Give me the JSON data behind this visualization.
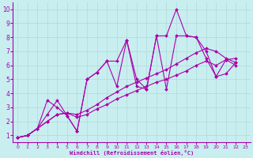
{
  "bg_color": "#c8eef0",
  "line_color": "#aa00aa",
  "grid_color": "#b0d8da",
  "xlabel": "Windchill (Refroidissement éolien,°C)",
  "xlabel_color": "#aa00aa",
  "tick_color": "#aa00aa",
  "xlim": [
    -0.5,
    23.5
  ],
  "ylim": [
    0.5,
    10.5
  ],
  "xticks": [
    0,
    1,
    2,
    3,
    4,
    5,
    6,
    7,
    8,
    9,
    10,
    11,
    12,
    13,
    14,
    15,
    16,
    17,
    18,
    19,
    20,
    21,
    22,
    23
  ],
  "yticks": [
    1,
    2,
    3,
    4,
    5,
    6,
    7,
    8,
    9,
    10
  ],
  "line1_x": [
    0,
    1,
    2,
    3,
    4,
    5,
    6,
    7,
    8,
    9,
    10,
    11,
    12,
    13,
    14,
    15,
    16,
    17,
    18,
    19,
    20,
    21,
    22
  ],
  "line1_y": [
    0.85,
    1.0,
    1.5,
    3.5,
    3.0,
    2.4,
    1.3,
    5.0,
    5.5,
    6.3,
    6.3,
    7.8,
    4.5,
    4.3,
    8.1,
    8.1,
    10.0,
    8.1,
    8.0,
    7.0,
    5.2,
    6.4,
    6.0
  ],
  "line2_x": [
    0,
    1,
    2,
    3,
    4,
    5,
    6,
    7,
    8,
    9,
    10,
    11,
    12,
    13,
    14,
    15,
    16,
    17,
    18,
    19,
    20,
    21,
    22
  ],
  "line2_y": [
    0.85,
    1.0,
    1.5,
    2.5,
    3.5,
    2.4,
    1.3,
    5.0,
    5.5,
    6.3,
    4.5,
    7.8,
    5.0,
    4.3,
    8.1,
    4.3,
    8.1,
    8.1,
    8.0,
    6.5,
    5.2,
    5.4,
    6.2
  ],
  "line3_x": [
    0,
    1,
    2,
    3,
    4,
    5,
    6,
    7,
    8,
    9,
    10,
    11,
    12,
    13,
    14,
    15,
    16,
    17,
    18,
    19,
    20,
    21,
    22
  ],
  "line3_y": [
    0.85,
    1.0,
    1.5,
    2.0,
    2.5,
    2.6,
    2.5,
    2.8,
    3.2,
    3.7,
    4.1,
    4.5,
    4.8,
    5.1,
    5.4,
    5.7,
    6.1,
    6.5,
    6.9,
    7.2,
    7.0,
    6.5,
    6.2
  ],
  "line4_x": [
    0,
    1,
    2,
    3,
    4,
    5,
    6,
    7,
    8,
    9,
    10,
    11,
    12,
    13,
    14,
    15,
    16,
    17,
    18,
    19,
    20,
    21,
    22
  ],
  "line4_y": [
    0.85,
    1.0,
    1.5,
    2.0,
    2.5,
    2.6,
    2.3,
    2.5,
    2.9,
    3.2,
    3.6,
    3.9,
    4.2,
    4.5,
    4.8,
    5.0,
    5.3,
    5.6,
    6.0,
    6.3,
    6.0,
    6.4,
    6.5
  ]
}
